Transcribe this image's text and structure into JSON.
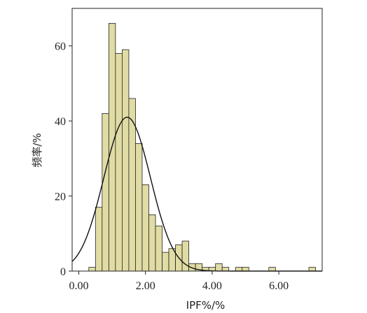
{
  "chart_data": {
    "type": "bar",
    "xlabel": "IPF%/%",
    "ylabel": "频率/%",
    "xlim": [
      -0.2,
      7.3
    ],
    "ylim": [
      0,
      70
    ],
    "x_ticks": [
      "0.00",
      "2.00",
      "4.00",
      "6.00"
    ],
    "x_tick_values": [
      0,
      2,
      4,
      6
    ],
    "y_ticks": [
      "0",
      "20",
      "40",
      "60"
    ],
    "y_tick_values": [
      0,
      20,
      40,
      60
    ],
    "bin_width": 0.2,
    "bins": [
      {
        "x0": 0.3,
        "value": 1
      },
      {
        "x0": 0.5,
        "value": 17
      },
      {
        "x0": 0.7,
        "value": 42
      },
      {
        "x0": 0.9,
        "value": 66
      },
      {
        "x0": 1.1,
        "value": 58
      },
      {
        "x0": 1.3,
        "value": 59
      },
      {
        "x0": 1.5,
        "value": 46
      },
      {
        "x0": 1.7,
        "value": 34
      },
      {
        "x0": 1.9,
        "value": 23
      },
      {
        "x0": 2.1,
        "value": 15
      },
      {
        "x0": 2.3,
        "value": 12
      },
      {
        "x0": 2.5,
        "value": 5
      },
      {
        "x0": 2.7,
        "value": 6
      },
      {
        "x0": 2.9,
        "value": 7
      },
      {
        "x0": 3.1,
        "value": 8
      },
      {
        "x0": 3.3,
        "value": 2
      },
      {
        "x0": 3.5,
        "value": 2
      },
      {
        "x0": 3.7,
        "value": 1
      },
      {
        "x0": 3.9,
        "value": 1
      },
      {
        "x0": 4.1,
        "value": 2
      },
      {
        "x0": 4.3,
        "value": 1
      },
      {
        "x0": 4.7,
        "value": 1
      },
      {
        "x0": 4.9,
        "value": 1
      },
      {
        "x0": 5.7,
        "value": 1
      },
      {
        "x0": 6.9,
        "value": 1
      }
    ],
    "normal_curve": {
      "mean": 1.45,
      "sd": 0.7,
      "peak": 41
    },
    "bar_color": "#e0dca4",
    "bar_edge_color": "#222222",
    "curve_color": "#111111"
  }
}
